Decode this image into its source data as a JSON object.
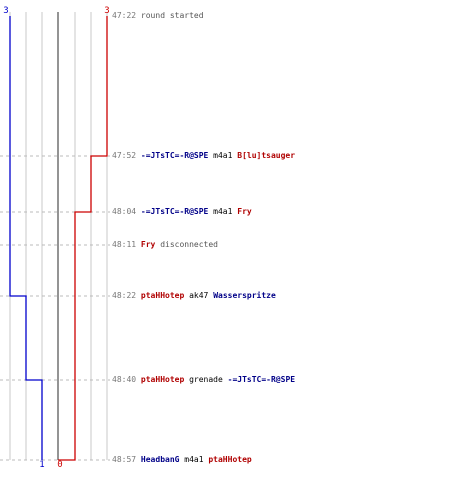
{
  "chart_data": {
    "type": "line",
    "title": "",
    "xlabel": "",
    "ylabel": "",
    "series": [
      {
        "color": "#0000cc",
        "start_count": "3",
        "end_count": "1"
      },
      {
        "color": "#cc0000",
        "start_count": "3",
        "end_count": "0"
      }
    ],
    "lane_values": [
      3,
      2,
      1,
      0,
      1,
      2,
      3
    ],
    "timestamps": [
      "47:22",
      "47:52",
      "48:04",
      "48:11",
      "48:22",
      "48:40",
      "48:57"
    ],
    "blue_series_path": [
      [
        0,
        3
      ],
      [
        4,
        2
      ],
      [
        5,
        1
      ],
      [
        6,
        1
      ]
    ],
    "red_series_path": [
      [
        0,
        3
      ],
      [
        1,
        2
      ],
      [
        2,
        1
      ],
      [
        6,
        0
      ]
    ]
  },
  "events": [
    {
      "time": "47:22",
      "parts": [
        {
          "text": "round started",
          "style": "log-text"
        }
      ]
    },
    {
      "time": "47:52",
      "parts": [
        {
          "text": "-=JTsTC=-R@SPE",
          "style": "blue"
        },
        {
          "text": " m4a1 ",
          "style": "plain"
        },
        {
          "text": "B[lu]tsauger",
          "style": "red"
        }
      ]
    },
    {
      "time": "48:04",
      "parts": [
        {
          "text": "-=JTsTC=-R@SPE",
          "style": "blue"
        },
        {
          "text": " m4a1 ",
          "style": "plain"
        },
        {
          "text": "Fry",
          "style": "red"
        }
      ]
    },
    {
      "time": "48:11",
      "parts": [
        {
          "text": "Fry",
          "style": "red"
        },
        {
          "text": " disconnected",
          "style": "log-text"
        }
      ]
    },
    {
      "time": "48:22",
      "parts": [
        {
          "text": "ptaHHotep",
          "style": "red"
        },
        {
          "text": " ak47 ",
          "style": "plain"
        },
        {
          "text": "Wasserspritze",
          "style": "blue"
        }
      ]
    },
    {
      "time": "48:40",
      "parts": [
        {
          "text": "ptaHHotep",
          "style": "red"
        },
        {
          "text": " grenade ",
          "style": "plain"
        },
        {
          "text": "-=JTsTC=-R@SPE",
          "style": "blue"
        }
      ]
    },
    {
      "time": "48:57",
      "parts": [
        {
          "text": "HeadbanG",
          "style": "blue"
        },
        {
          "text": " m4a1 ",
          "style": "plain"
        },
        {
          "text": "ptaHHotep",
          "style": "red"
        }
      ]
    }
  ]
}
